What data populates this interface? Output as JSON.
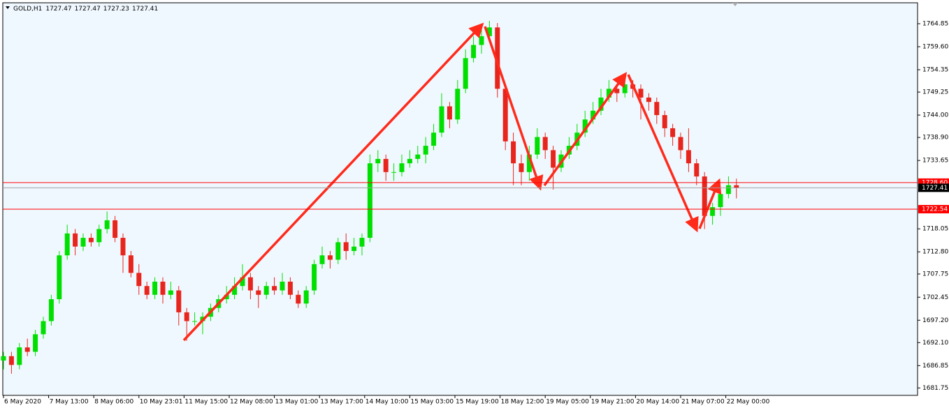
{
  "chart_data": {
    "type": "candlestick",
    "symbol": "GOLD,H1",
    "header_ohlc": [
      1727.47,
      1727.47,
      1727.23,
      1727.41
    ],
    "up_color": "#00e000",
    "down_color": "#e8251c",
    "xlim": [
      -0.26,
      344.21
    ],
    "ylim": [
      1680.06,
      1769.62
    ],
    "xticks": [
      {
        "value": 0,
        "label": "6 May 2020"
      },
      {
        "value": 17,
        "label": "7 May 13:00"
      },
      {
        "value": 34,
        "label": "8 May 06:00"
      },
      {
        "value": 51,
        "label": "10 May 23:01"
      },
      {
        "value": 68,
        "label": "11 May 15:00"
      },
      {
        "value": 85,
        "label": "12 May 08:00"
      },
      {
        "value": 102,
        "label": "13 May 01:00"
      },
      {
        "value": 119,
        "label": "13 May 17:00"
      },
      {
        "value": 136,
        "label": "14 May 10:00"
      },
      {
        "value": 153,
        "label": "15 May 03:00"
      },
      {
        "value": 170,
        "label": "15 May 19:00"
      },
      {
        "value": 187,
        "label": "18 May 12:00"
      },
      {
        "value": 204,
        "label": "19 May 05:00"
      },
      {
        "value": 221,
        "label": "19 May 21:00"
      },
      {
        "value": 238,
        "label": "20 May 14:00"
      },
      {
        "value": 255,
        "label": "21 May 07:00"
      },
      {
        "value": 272,
        "label": "22 May 00:00"
      }
    ],
    "yticks": [
      1764.85,
      {
        "value": 1759.6,
        "label": "1759.60"
      },
      1754.35,
      1749.25,
      {
        "value": 1744,
        "label": "1744.00"
      },
      {
        "value": 1738.9,
        "label": "1738.90"
      },
      1733.65,
      1718.05,
      {
        "value": 1712.8,
        "label": "1712.80"
      },
      1707.75,
      1702.45,
      {
        "value": 1697.2,
        "label": "1697.20"
      },
      {
        "value": 1692.1,
        "label": "1692.10"
      },
      1686.85,
      1681.75
    ],
    "levels": [
      {
        "value": 1728.6,
        "label": "1728.60",
        "color": "#ff0000"
      },
      {
        "value": 1722.54,
        "label": "1722.54",
        "color": "#ff0000"
      },
      {
        "value": 1727.41,
        "label": "1727.41",
        "color": "#000000"
      }
    ],
    "x": [
      0,
      3,
      6,
      9,
      12,
      15,
      18,
      21,
      24,
      27,
      30,
      33,
      36,
      39,
      42,
      45,
      48,
      51,
      54,
      57,
      60,
      63,
      66,
      69,
      72,
      75,
      78,
      81,
      84,
      87,
      90,
      93,
      96,
      99,
      102,
      105,
      108,
      111,
      114,
      117,
      120,
      123,
      126,
      129,
      132,
      135,
      138,
      141,
      144,
      147,
      150,
      153,
      156,
      159,
      162,
      165,
      168,
      171,
      174,
      177,
      180,
      183,
      186,
      189,
      192,
      195,
      198,
      201,
      204,
      207,
      210,
      213,
      216,
      219,
      222,
      225,
      228,
      231,
      234,
      237,
      240,
      243,
      246,
      249,
      252,
      255,
      258,
      261,
      264,
      267,
      270,
      273,
      276
    ],
    "open": [
      1688,
      1689,
      1687,
      1691,
      1690,
      1694,
      1697,
      1702,
      1712,
      1717,
      1714,
      1716,
      1715,
      1718,
      1720,
      1716,
      1712,
      1708,
      1705,
      1703,
      1706,
      1703,
      1704,
      1699,
      1697,
      1697,
      1698,
      1700,
      1702,
      1703,
      1705,
      1707,
      1704,
      1703,
      1705,
      1704,
      1706,
      1703,
      1701,
      1704,
      1710,
      1712,
      1711,
      1715,
      1713,
      1714,
      1716,
      1733,
      1734,
      1731,
      1731,
      1733,
      1734,
      1735,
      1737,
      1740,
      1746,
      1743,
      1750,
      1757,
      1760,
      1762,
      1764,
      1750,
      1738,
      1733,
      1731,
      1735,
      1739,
      1736,
      1732,
      1735,
      1737,
      1740,
      1743,
      1745,
      1748,
      1750,
      1749,
      1751,
      1750,
      1748,
      1747,
      1744,
      1741,
      1739,
      1736,
      1733,
      1730,
      1721,
      1723,
      1726,
      1728
    ],
    "high": [
      1690,
      1690,
      1692,
      1693,
      1695,
      1698,
      1703,
      1713,
      1719,
      1718,
      1717,
      1717,
      1719,
      1722,
      1721,
      1717,
      1713,
      1710,
      1706,
      1707,
      1707,
      1706,
      1705,
      1700,
      1699,
      1699,
      1701,
      1703,
      1705,
      1707,
      1710,
      1708,
      1705,
      1706,
      1707,
      1708,
      1707,
      1704,
      1705,
      1711,
      1714,
      1713,
      1716,
      1717,
      1716,
      1717,
      1735,
      1736,
      1735,
      1733,
      1735,
      1736,
      1737,
      1739,
      1742,
      1749,
      1747,
      1752,
      1759,
      1762,
      1764,
      1765.5,
      1765,
      1751,
      1740,
      1735,
      1737,
      1741,
      1740,
      1737,
      1736,
      1739,
      1742,
      1745,
      1747,
      1750,
      1752,
      1751,
      1753,
      1752,
      1751,
      1749,
      1748,
      1745,
      1742,
      1740,
      1741,
      1734,
      1731,
      1724,
      1727,
      1730,
      1729.5
    ],
    "low": [
      1686,
      1685,
      1686,
      1689,
      1689,
      1693,
      1696,
      1701,
      1711,
      1712,
      1713,
      1714,
      1714,
      1717,
      1715,
      1708,
      1707,
      1703,
      1702,
      1702,
      1701,
      1702,
      1696,
      1692.5,
      1696,
      1694,
      1697,
      1699,
      1701,
      1702,
      1704,
      1702,
      1700,
      1702,
      1703,
      1703,
      1702,
      1700,
      1700,
      1703,
      1709,
      1709,
      1710,
      1711,
      1712,
      1712,
      1715,
      1731,
      1729,
      1729,
      1730,
      1732,
      1733,
      1733,
      1736,
      1739,
      1741,
      1742,
      1749,
      1756,
      1758,
      1761,
      1748,
      1736,
      1728,
      1728,
      1729,
      1734,
      1734,
      1727,
      1731,
      1734,
      1736,
      1739,
      1742,
      1744,
      1747,
      1747,
      1748,
      1748,
      1743,
      1745,
      1742,
      1739,
      1737,
      1734,
      1731,
      1728,
      1718,
      1719,
      1721,
      1725,
      1725
    ],
    "close": [
      1689,
      1687,
      1691,
      1690,
      1694,
      1697,
      1702,
      1712,
      1717,
      1714,
      1716,
      1715,
      1718,
      1720,
      1716,
      1712,
      1708,
      1705,
      1703,
      1706,
      1703,
      1704,
      1699,
      1697,
      1697,
      1698,
      1700,
      1702,
      1703,
      1705,
      1707,
      1704,
      1703,
      1705,
      1704,
      1706,
      1703,
      1701,
      1704,
      1710,
      1712,
      1711,
      1715,
      1713,
      1714,
      1716,
      1733,
      1734,
      1731,
      1731,
      1733,
      1734,
      1735,
      1737,
      1740,
      1746,
      1743,
      1750,
      1757,
      1760,
      1762,
      1764,
      1750,
      1738,
      1733,
      1731,
      1735,
      1739,
      1736,
      1732,
      1735,
      1737,
      1740,
      1743,
      1745,
      1748,
      1750,
      1749,
      1751,
      1750,
      1748,
      1747,
      1744,
      1741,
      1739,
      1736,
      1733,
      1730,
      1721,
      1723,
      1726,
      1728,
      1727.41
    ]
  }
}
